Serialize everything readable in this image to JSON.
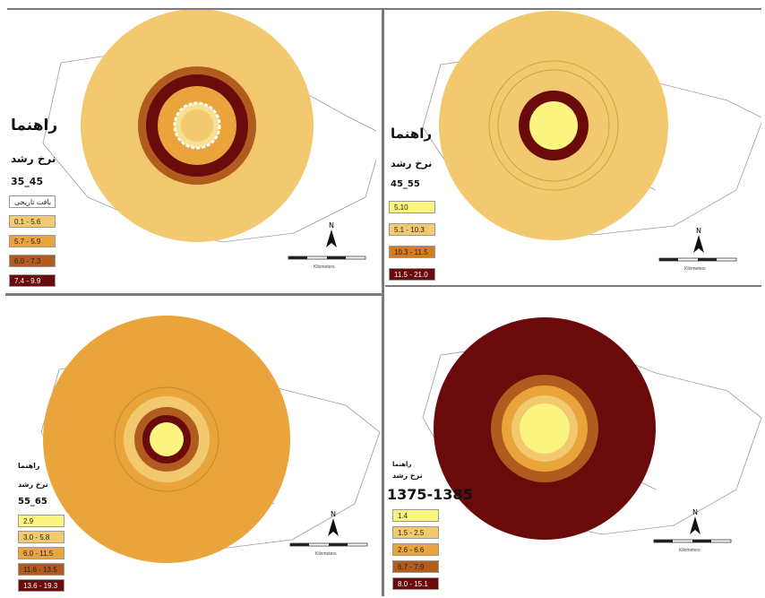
{
  "colors": {
    "band_1": "#f3c96f",
    "band_2": "#e9a53c",
    "band_3": "#b25b1e",
    "band_4": "#6a0a0a",
    "band_yellow": "#fbf47f",
    "inner_light": "#f6df90",
    "admin_lines": "#9c9c9c"
  },
  "panels": [
    {
      "id": "tl",
      "guide": "راهنما",
      "legend_title": "نرخ رشد",
      "period": "35_45",
      "items": [
        {
          "label": "بافت تاریخی",
          "color": "#ffffff"
        },
        {
          "label": "0.1 - 5.6",
          "color": "#f3c96f"
        },
        {
          "label": "5.7 - 5.9",
          "color": "#e9a53c"
        },
        {
          "label": "6.0 - 7.3",
          "color": "#b25b1e"
        },
        {
          "label": "7.4 - 9.9",
          "color": "#6a0a0a"
        }
      ]
    },
    {
      "id": "tr",
      "guide": "راهنما",
      "legend_title": "نرخ رشد",
      "period": "45_55",
      "items": [
        {
          "label": "5.10",
          "color": "#fbf47f"
        },
        {
          "label": "5.1 - 10.3",
          "color": "#f3c96f"
        },
        {
          "label": "10.3 - 11.5",
          "color": "#d97a1e"
        },
        {
          "label": "11.5 - 21.0",
          "color": "#6a0a0a"
        }
      ]
    },
    {
      "id": "bl",
      "guide": "راهنما",
      "legend_title": "نرخ رشد",
      "period": "55_65",
      "items": [
        {
          "label": "2.9",
          "color": "#fbf47f"
        },
        {
          "label": "3.0 - 5.8",
          "color": "#f3c96f"
        },
        {
          "label": "6.0 - 11.5",
          "color": "#e9a53c"
        },
        {
          "label": "11.6 - 13.5",
          "color": "#b25b1e"
        },
        {
          "label": "13.6 - 19.3",
          "color": "#6a0a0a"
        }
      ]
    },
    {
      "id": "br",
      "guide": "راهنما",
      "legend_title": "نرخ رشد",
      "period": "1375-1385",
      "items": [
        {
          "label": "1.4",
          "color": "#fbf47f"
        },
        {
          "label": "1.5 - 2.5",
          "color": "#f3c96f"
        },
        {
          "label": "2.6 - 6.6",
          "color": "#e9a53c"
        },
        {
          "label": "6.7 - 7.9",
          "color": "#b25b1e"
        },
        {
          "label": "8.0 - 15.1",
          "color": "#6a0a0a"
        }
      ]
    }
  ],
  "north_label": "N",
  "scale_label": "Kilometers"
}
